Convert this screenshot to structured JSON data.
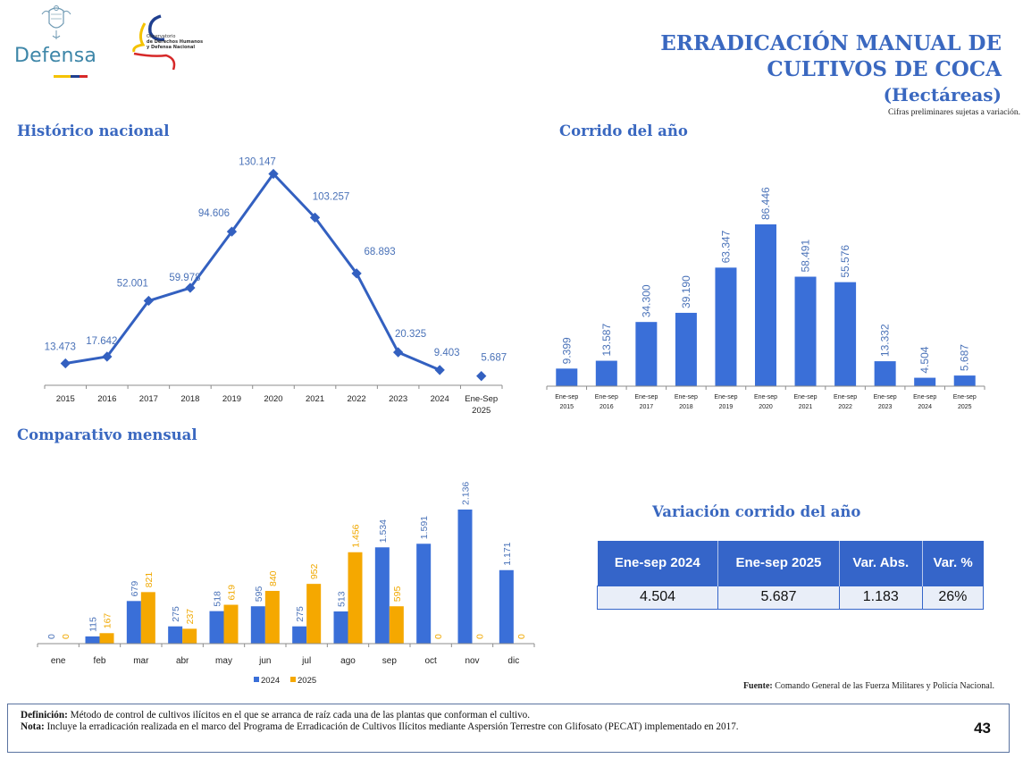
{
  "header": {
    "logo_defensa_text": "Defensa",
    "logo_observatorio_lines": [
      "Observatorio",
      "de Derechos Humanos",
      "y Defensa Nacional"
    ],
    "title_line1": "ERRADICACIÓN MANUAL DE",
    "title_line2": "CULTIVOS DE COCA",
    "subtitle": "(Hectáreas)",
    "preliminary_note": "Cifras preliminares sujetas a variación."
  },
  "colors": {
    "primary_blue": "#3a68c0",
    "bar_blue": "#3a6fd8",
    "bar_orange": "#f5a800",
    "line_blue": "#3360c0",
    "flag_yellow": "#f4c200",
    "flag_blue": "#1f3f8f",
    "flag_red": "#d62828"
  },
  "sections": {
    "historico": "Histórico nacional",
    "corrido": "Corrido del año",
    "mensual": "Comparativo mensual",
    "variacion": "Variación corrido del año"
  },
  "chart_data": [
    {
      "id": "historico",
      "type": "line",
      "title": "Histórico nacional",
      "categories": [
        "2015",
        "2016",
        "2017",
        "2018",
        "2019",
        "2020",
        "2021",
        "2022",
        "2023",
        "2024",
        "Ene-Sep 2025"
      ],
      "values": [
        13473,
        17642,
        52001,
        59978,
        94606,
        130147,
        103257,
        68893,
        20325,
        9403,
        5687
      ],
      "labels": [
        "13.473",
        "17.642",
        "52.001",
        "59.978",
        "94.606",
        "130.147",
        "103.257",
        "68.893",
        "20.325",
        "9.403",
        "5.687"
      ],
      "connected_points": 10,
      "ylim": [
        0,
        140000
      ],
      "grid": false,
      "xlabel": "",
      "ylabel": ""
    },
    {
      "id": "corrido",
      "type": "bar",
      "title": "Corrido del año",
      "categories": [
        "Ene-sep 2015",
        "Ene-sep 2016",
        "Ene-sep 2017",
        "Ene-sep 2018",
        "Ene-sep 2019",
        "Ene-sep 2020",
        "Ene-sep 2021",
        "Ene-sep 2022",
        "Ene-sep 2023",
        "Ene-sep 2024",
        "Ene-sep 2025"
      ],
      "values": [
        9399,
        13587,
        34300,
        39190,
        63347,
        86446,
        58491,
        55576,
        13332,
        4504,
        5687
      ],
      "labels": [
        "9.399",
        "13.587",
        "34.300",
        "39.190",
        "63.347",
        "86.446",
        "58.491",
        "55.576",
        "13.332",
        "4.504",
        "5.687"
      ],
      "ylim": [
        0,
        100000
      ],
      "grid": false,
      "xlabel": "",
      "ylabel": ""
    },
    {
      "id": "mensual",
      "type": "bar",
      "title": "Comparativo mensual",
      "categories": [
        "ene",
        "feb",
        "mar",
        "abr",
        "may",
        "jun",
        "jul",
        "ago",
        "sep",
        "oct",
        "nov",
        "dic"
      ],
      "series": [
        {
          "name": "2024",
          "values": [
            0,
            115,
            679,
            275,
            518,
            595,
            275,
            513,
            1534,
            1591,
            2136,
            1171
          ],
          "labels": [
            "0",
            "115",
            "679",
            "275",
            "518",
            "595",
            "275",
            "513",
            "1.534",
            "1.591",
            "2.136",
            "1.171"
          ]
        },
        {
          "name": "2025",
          "values": [
            0,
            167,
            821,
            237,
            619,
            840,
            952,
            1456,
            595,
            0,
            0,
            0
          ],
          "labels": [
            "0",
            "167",
            "821",
            "237",
            "619",
            "840",
            "952",
            "1.456",
            "595",
            "0",
            "0",
            "0"
          ]
        }
      ],
      "legend_position": "bottom",
      "ylim": [
        0,
        2500
      ],
      "grid": false,
      "xlabel": "",
      "ylabel": ""
    }
  ],
  "variation_table": {
    "headers": [
      "Ene-sep 2024",
      "Ene-sep 2025",
      "Var. Abs.",
      "Var. %"
    ],
    "values": [
      "4.504",
      "5.687",
      "1.183",
      "26%"
    ]
  },
  "footer": {
    "source_label": "Fuente:",
    "source_text": " Comando General de las Fuerza Militares y Policía Nacional.",
    "definition_label": "Definición:",
    "definition_text": " Método de control de cultivos ilícitos en el que se arranca de raíz cada una de las plantas que conforman el cultivo.",
    "note_label": "Nota:",
    "note_text": " Incluye la erradicación realizada en el marco del Programa de Erradicación de Cultivos Ilícitos mediante Aspersión Terrestre con Glifosato (PECAT) implementado en 2017.",
    "page_number": "43"
  }
}
